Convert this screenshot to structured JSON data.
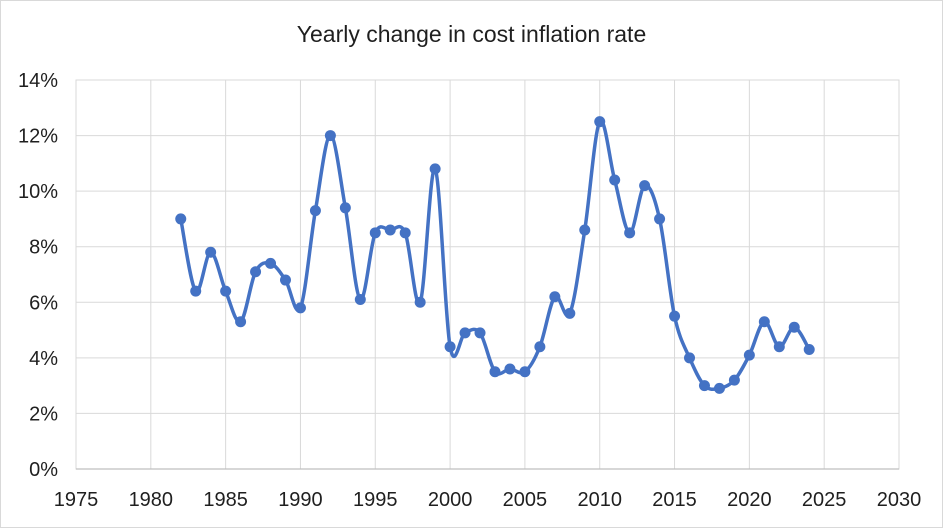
{
  "chart_data": {
    "type": "line",
    "title": "Yearly change in cost inflation rate",
    "x": [
      1982,
      1983,
      1984,
      1985,
      1986,
      1987,
      1988,
      1989,
      1990,
      1991,
      1992,
      1993,
      1994,
      1995,
      1996,
      1997,
      1998,
      1999,
      2000,
      2001,
      2002,
      2003,
      2004,
      2005,
      2006,
      2007,
      2008,
      2009,
      2010,
      2011,
      2012,
      2013,
      2014,
      2015,
      2016,
      2017,
      2018,
      2019,
      2020,
      2021,
      2022,
      2023,
      2024
    ],
    "series": [
      {
        "values": [
          9.0,
          6.4,
          7.8,
          6.4,
          5.3,
          7.1,
          7.4,
          6.8,
          5.8,
          9.3,
          12.0,
          9.4,
          6.1,
          8.5,
          8.6,
          8.5,
          6.0,
          10.8,
          4.4,
          4.9,
          4.9,
          3.5,
          3.6,
          3.5,
          4.4,
          6.2,
          5.6,
          8.6,
          12.5,
          10.4,
          8.5,
          10.2,
          9.0,
          5.5,
          4.0,
          3.0,
          2.9,
          3.2,
          4.1,
          5.3,
          4.4,
          5.1,
          4.3
        ],
        "color": "#4472C4"
      }
    ],
    "xlabel": "",
    "ylabel": "",
    "xlim": [
      1975,
      2030
    ],
    "ylim": [
      0,
      14
    ],
    "x_ticks": [
      1975,
      1980,
      1985,
      1990,
      1995,
      2000,
      2005,
      2010,
      2015,
      2020,
      2025,
      2030
    ],
    "x_tick_labels": [
      "1975",
      "1980",
      "1985",
      "1990",
      "1995",
      "2000",
      "2005",
      "2010",
      "2015",
      "2020",
      "2025",
      "2030"
    ],
    "y_ticks": [
      0,
      2,
      4,
      6,
      8,
      10,
      12,
      14
    ],
    "y_tick_labels": [
      "0%",
      "2%",
      "4%",
      "6%",
      "8%",
      "10%",
      "12%",
      "14%"
    ],
    "grid": true,
    "legend": "none",
    "marker": "circle",
    "smooth": true,
    "colors": {
      "series": "#4472C4",
      "gridline": "#d9d9d9",
      "axis_line": "#bfbfbf",
      "text": "#1f1f1f"
    }
  }
}
